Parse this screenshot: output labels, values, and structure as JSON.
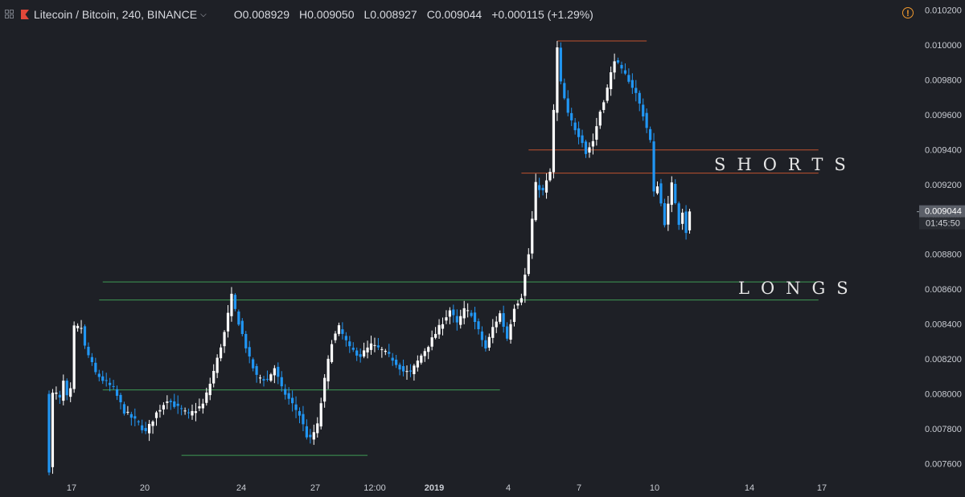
{
  "header": {
    "symbol": "Litecoin / Bitcoin, 240, BINANCE",
    "open": "O0.008929",
    "high": "H0.009050",
    "low": "L0.008927",
    "close": "C0.009044",
    "change": "+0.000115 (+1.29%)"
  },
  "icons": {
    "grid": "grid-icon",
    "flag": "flag-icon",
    "chevron": "chevron-down-icon",
    "warning": "warning-icon"
  },
  "labels": {
    "shorts": "SHORTS",
    "longs": "LONGS"
  },
  "price_badge": {
    "price": "0.009044",
    "countdown": "01:45:50"
  },
  "colors": {
    "background": "#1e2026",
    "up_candle": "#ffffff",
    "down_candle": "#2196f3",
    "resistance_line": "#c0522f",
    "support_line": "#3f9a55",
    "axis_text": "#c9ccd3"
  },
  "chart_data": {
    "type": "candlestick",
    "y_axis": {
      "range": [
        0.00752,
        0.01022
      ],
      "ticks": [
        "0.010200",
        "0.010000",
        "0.009800",
        "0.009600",
        "0.009400",
        "0.009200",
        "0.009000",
        "0.008800",
        "0.008600",
        "0.008400",
        "0.008200",
        "0.008000",
        "0.007800",
        "0.007600"
      ]
    },
    "x_axis": {
      "ticks": [
        {
          "label": "17",
          "bold": false
        },
        {
          "label": "20",
          "bold": false
        },
        {
          "label": "24",
          "bold": false
        },
        {
          "label": "27",
          "bold": false
        },
        {
          "label": "12:00",
          "bold": false
        },
        {
          "label": "2019",
          "bold": true
        },
        {
          "label": "4",
          "bold": false
        },
        {
          "label": "7",
          "bold": false
        },
        {
          "label": "10",
          "bold": false
        },
        {
          "label": "14",
          "bold": false
        },
        {
          "label": "17",
          "bold": false
        }
      ]
    },
    "anchor_closes": [
      [
        0,
        0.00758
      ],
      [
        1,
        0.008
      ],
      [
        2,
        0.008
      ],
      [
        3,
        0.00797
      ],
      [
        4,
        0.00807
      ],
      [
        5,
        0.00798
      ],
      [
        6,
        0.00802
      ],
      [
        7,
        0.00838
      ],
      [
        9,
        0.00838
      ],
      [
        10,
        0.00827
      ],
      [
        11,
        0.00822
      ],
      [
        13,
        0.00812
      ],
      [
        15,
        0.00808
      ],
      [
        18,
        0.00803
      ],
      [
        21,
        0.0079
      ],
      [
        25,
        0.00783
      ],
      [
        27,
        0.00778
      ],
      [
        30,
        0.00789
      ],
      [
        33,
        0.00797
      ],
      [
        36,
        0.00792
      ],
      [
        39,
        0.00788
      ],
      [
        43,
        0.00794
      ],
      [
        45,
        0.00806
      ],
      [
        47,
        0.0082
      ],
      [
        49,
        0.00835
      ],
      [
        51,
        0.00856
      ],
      [
        52,
        0.00848
      ],
      [
        54,
        0.00834
      ],
      [
        56,
        0.0082
      ],
      [
        58,
        0.0081
      ],
      [
        61,
        0.00808
      ],
      [
        63,
        0.00815
      ],
      [
        65,
        0.00803
      ],
      [
        68,
        0.00794
      ],
      [
        70,
        0.00788
      ],
      [
        72,
        0.00776
      ],
      [
        73,
        0.00774
      ],
      [
        75,
        0.00782
      ],
      [
        77,
        0.00808
      ],
      [
        79,
        0.0083
      ],
      [
        81,
        0.00838
      ],
      [
        84,
        0.00826
      ],
      [
        87,
        0.00822
      ],
      [
        90,
        0.00828
      ],
      [
        93,
        0.00825
      ],
      [
        96,
        0.0082
      ],
      [
        99,
        0.00813
      ],
      [
        101,
        0.00812
      ],
      [
        104,
        0.00822
      ],
      [
        106,
        0.00828
      ],
      [
        109,
        0.00838
      ],
      [
        112,
        0.00848
      ],
      [
        114,
        0.0084
      ],
      [
        116,
        0.00848
      ],
      [
        118,
        0.00846
      ],
      [
        120,
        0.00836
      ],
      [
        122,
        0.00826
      ],
      [
        124,
        0.00838
      ],
      [
        126,
        0.00846
      ],
      [
        128,
        0.00832
      ],
      [
        130,
        0.0085
      ],
      [
        132,
        0.00856
      ],
      [
        134,
        0.0088
      ],
      [
        136,
        0.0092
      ],
      [
        138,
        0.00916
      ],
      [
        140,
        0.00927
      ],
      [
        141,
        0.00962
      ],
      [
        142,
        0.00998
      ],
      [
        143,
        0.00978
      ],
      [
        145,
        0.0096
      ],
      [
        147,
        0.00952
      ],
      [
        149,
        0.00945
      ],
      [
        150,
        0.00938
      ],
      [
        152,
        0.00945
      ],
      [
        154,
        0.00962
      ],
      [
        156,
        0.00975
      ],
      [
        158,
        0.00992
      ],
      [
        160,
        0.00985
      ],
      [
        162,
        0.0098
      ],
      [
        164,
        0.00972
      ],
      [
        166,
        0.0096
      ],
      [
        168,
        0.00945
      ],
      [
        169,
        0.00915
      ],
      [
        170,
        0.0092
      ],
      [
        172,
        0.00898
      ],
      [
        173,
        0.00908
      ],
      [
        174,
        0.0092
      ],
      [
        175,
        0.0091
      ],
      [
        176,
        0.00898
      ],
      [
        177,
        0.00905
      ],
      [
        178,
        0.00893
      ],
      [
        179,
        0.00904
      ]
    ],
    "levels": [
      {
        "name": "resistance-top",
        "price": 0.010022,
        "from_index": 142,
        "to_index": 167,
        "kind": "resistance"
      },
      {
        "name": "shorts-upper",
        "price": 0.009398,
        "from_index": 134,
        "to_index": 215,
        "kind": "resistance"
      },
      {
        "name": "shorts-lower",
        "price": 0.009265,
        "from_index": 132,
        "to_index": 215,
        "kind": "resistance"
      },
      {
        "name": "longs-upper",
        "price": 0.008642,
        "from_index": 15,
        "to_index": 215,
        "kind": "support"
      },
      {
        "name": "longs-lower",
        "price": 0.008538,
        "from_index": 14,
        "to_index": 215,
        "kind": "support"
      },
      {
        "name": "mid-support",
        "price": 0.008023,
        "from_index": 15,
        "to_index": 126,
        "kind": "support"
      },
      {
        "name": "bottom-support",
        "price": 0.007648,
        "from_index": 37,
        "to_index": 89,
        "kind": "support"
      }
    ]
  }
}
